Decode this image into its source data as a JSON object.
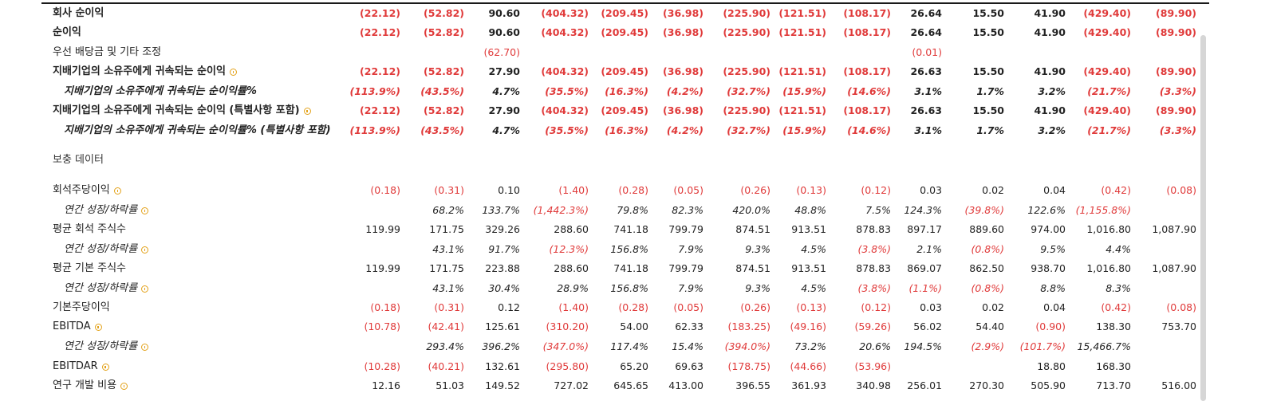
{
  "columns_count": 14,
  "rows": [
    {
      "label": "회사 순이익",
      "style": "b",
      "info": false,
      "values": [
        "(22.12)",
        "(52.82)",
        "90.60",
        "(404.32)",
        "(209.45)",
        "(36.98)",
        "(225.90)",
        "(121.51)",
        "(108.17)",
        "26.64",
        "15.50",
        "41.90",
        "(429.40)",
        "(89.90)"
      ]
    },
    {
      "label": "순이익",
      "style": "b",
      "info": false,
      "values": [
        "(22.12)",
        "(52.82)",
        "90.60",
        "(404.32)",
        "(209.45)",
        "(36.98)",
        "(225.90)",
        "(121.51)",
        "(108.17)",
        "26.64",
        "15.50",
        "41.90",
        "(429.40)",
        "(89.90)"
      ]
    },
    {
      "label": "우선 배당금 및 기타 조정",
      "style": "n",
      "info": false,
      "values": [
        "",
        "",
        "(62.70)",
        "",
        "",
        "",
        "",
        "",
        "",
        "(0.01)",
        "",
        "",
        "",
        ""
      ]
    },
    {
      "label": "지배기업의 소유주에게 귀속되는 순이익",
      "style": "b",
      "info": true,
      "values": [
        "(22.12)",
        "(52.82)",
        "27.90",
        "(404.32)",
        "(209.45)",
        "(36.98)",
        "(225.90)",
        "(121.51)",
        "(108.17)",
        "26.63",
        "15.50",
        "41.90",
        "(429.40)",
        "(89.90)"
      ]
    },
    {
      "label": "지배기업의 소유주에게 귀속되는 순이익률%",
      "style": "bi",
      "indent": true,
      "info": false,
      "values": [
        "(113.9%)",
        "(43.5%)",
        "4.7%",
        "(35.5%)",
        "(16.3%)",
        "(4.2%)",
        "(32.7%)",
        "(15.9%)",
        "(14.6%)",
        "3.1%",
        "1.7%",
        "3.2%",
        "(21.7%)",
        "(3.3%)"
      ]
    },
    {
      "label": "지배기업의 소유주에게 귀속되는 순이익 (특별사항 포함)",
      "style": "b",
      "info": true,
      "values": [
        "(22.12)",
        "(52.82)",
        "27.90",
        "(404.32)",
        "(209.45)",
        "(36.98)",
        "(225.90)",
        "(121.51)",
        "(108.17)",
        "26.63",
        "15.50",
        "41.90",
        "(429.40)",
        "(89.90)"
      ]
    },
    {
      "label": "지배기업의 소유주에게 귀속되는 순이익률% (특별사항 포함)",
      "style": "bi",
      "indent": true,
      "info": false,
      "values": [
        "(113.9%)",
        "(43.5%)",
        "4.7%",
        "(35.5%)",
        "(16.3%)",
        "(4.2%)",
        "(32.7%)",
        "(15.9%)",
        "(14.6%)",
        "3.1%",
        "1.7%",
        "3.2%",
        "(21.7%)",
        "(3.3%)"
      ]
    },
    {
      "label": "보충 데이터",
      "style": "section",
      "info": false,
      "values": []
    },
    {
      "label": "회석주당이익",
      "style": "n",
      "info": true,
      "values": [
        "(0.18)",
        "(0.31)",
        "0.10",
        "(1.40)",
        "(0.28)",
        "(0.05)",
        "(0.26)",
        "(0.13)",
        "(0.12)",
        "0.03",
        "0.02",
        "0.04",
        "(0.42)",
        "(0.08)"
      ]
    },
    {
      "label": "연간 성장/하락률",
      "style": "i",
      "indent": true,
      "info": true,
      "values": [
        "",
        "68.2%",
        "133.7%",
        "(1,442.3%)",
        "79.8%",
        "82.3%",
        "420.0%",
        "48.8%",
        "7.5%",
        "124.3%",
        "(39.8%)",
        "122.6%",
        "(1,155.8%)",
        ""
      ]
    },
    {
      "label": "평균 회석 주식수",
      "style": "n",
      "info": false,
      "values": [
        "119.99",
        "171.75",
        "329.26",
        "288.60",
        "741.18",
        "799.79",
        "874.51",
        "913.51",
        "878.83",
        "897.17",
        "889.60",
        "974.00",
        "1,016.80",
        "1,087.90"
      ]
    },
    {
      "label": "연간 성장/하락률",
      "style": "i",
      "indent": true,
      "info": true,
      "values": [
        "",
        "43.1%",
        "91.7%",
        "(12.3%)",
        "156.8%",
        "7.9%",
        "9.3%",
        "4.5%",
        "(3.8%)",
        "2.1%",
        "(0.8%)",
        "9.5%",
        "4.4%",
        ""
      ]
    },
    {
      "label": "평균 기본 주식수",
      "style": "n",
      "info": false,
      "values": [
        "119.99",
        "171.75",
        "223.88",
        "288.60",
        "741.18",
        "799.79",
        "874.51",
        "913.51",
        "878.83",
        "869.07",
        "862.50",
        "938.70",
        "1,016.80",
        "1,087.90"
      ]
    },
    {
      "label": "연간 성장/하락률",
      "style": "i",
      "indent": true,
      "info": true,
      "values": [
        "",
        "43.1%",
        "30.4%",
        "28.9%",
        "156.8%",
        "7.9%",
        "9.3%",
        "4.5%",
        "(3.8%)",
        "(1.1%)",
        "(0.8%)",
        "8.8%",
        "8.3%",
        ""
      ]
    },
    {
      "label": "기본주당이익",
      "style": "n",
      "info": false,
      "values": [
        "(0.18)",
        "(0.31)",
        "0.12",
        "(1.40)",
        "(0.28)",
        "(0.05)",
        "(0.26)",
        "(0.13)",
        "(0.12)",
        "0.03",
        "0.02",
        "0.04",
        "(0.42)",
        "(0.08)"
      ]
    },
    {
      "label": "EBITDA",
      "style": "n",
      "info": true,
      "values": [
        "(10.78)",
        "(42.41)",
        "125.61",
        "(310.20)",
        "54.00",
        "62.33",
        "(183.25)",
        "(49.16)",
        "(59.26)",
        "56.02",
        "54.40",
        "(0.90)",
        "138.30",
        "753.70"
      ]
    },
    {
      "label": "연간 성장/하락률",
      "style": "i",
      "indent": true,
      "info": true,
      "values": [
        "",
        "293.4%",
        "396.2%",
        "(347.0%)",
        "117.4%",
        "15.4%",
        "(394.0%)",
        "73.2%",
        "20.6%",
        "194.5%",
        "(2.9%)",
        "(101.7%)",
        "15,466.7%",
        ""
      ]
    },
    {
      "label": "EBITDAR",
      "style": "n",
      "info": true,
      "values": [
        "(10.28)",
        "(40.21)",
        "132.61",
        "(295.80)",
        "65.20",
        "69.63",
        "(178.75)",
        "(44.66)",
        "(53.96)",
        "",
        "",
        "18.80",
        "168.30",
        ""
      ]
    },
    {
      "label": "연구 개발 비용",
      "style": "n",
      "info": true,
      "values": [
        "12.16",
        "51.03",
        "149.52",
        "727.02",
        "645.65",
        "413.00",
        "396.55",
        "361.93",
        "340.98",
        "256.01",
        "270.30",
        "505.90",
        "713.70",
        "516.00"
      ]
    }
  ]
}
